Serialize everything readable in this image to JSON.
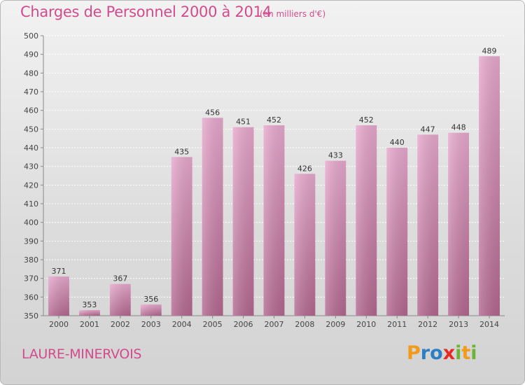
{
  "header": {
    "title": "Charges de Personnel 2000 à 2014",
    "subtitle": "(en milliers d'€)"
  },
  "footer": {
    "commune": "LAURE-MINERVOIS",
    "logo_letters": [
      "P",
      "r",
      "o",
      "x",
      "i",
      "t",
      "i"
    ],
    "logo_colors": [
      "#f29a1a",
      "#2c7fc4",
      "#2c7fc4",
      "#e42a22",
      "#6bb534",
      "#f29a1a",
      "#6bb534"
    ]
  },
  "colors": {
    "bar_light": "#e7a9cd",
    "bar_dark": "#b3688f",
    "text_accent": "#d24b8c"
  },
  "chart_data": {
    "type": "bar",
    "categories": [
      "2000",
      "2001",
      "2002",
      "2003",
      "2004",
      "2005",
      "2006",
      "2007",
      "2008",
      "2009",
      "2010",
      "2011",
      "2012",
      "2013",
      "2014"
    ],
    "values": [
      371,
      353,
      367,
      356,
      435,
      456,
      451,
      452,
      426,
      433,
      452,
      440,
      447,
      448,
      489
    ],
    "ylim": [
      350,
      500
    ],
    "yticks": [
      350,
      360,
      370,
      380,
      390,
      400,
      410,
      420,
      430,
      440,
      450,
      460,
      470,
      480,
      490,
      500
    ],
    "grid": true
  }
}
